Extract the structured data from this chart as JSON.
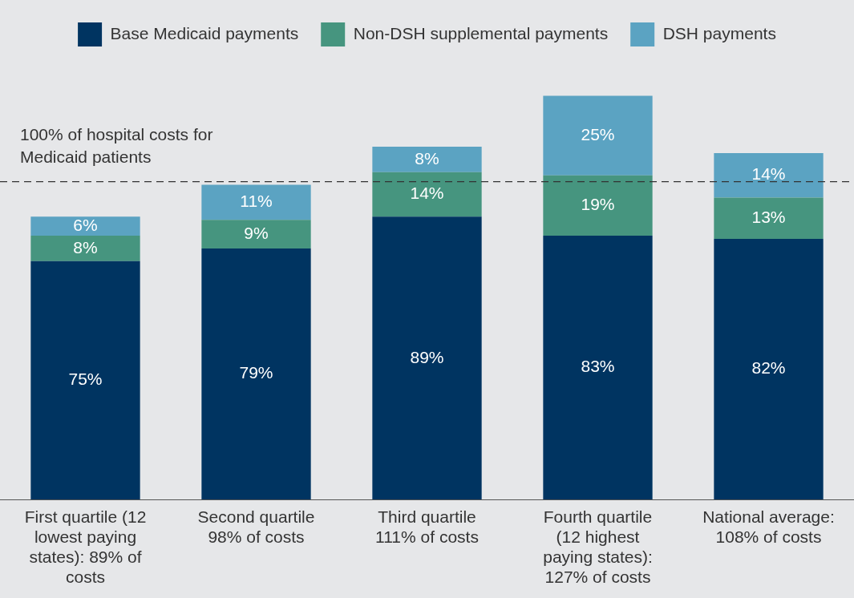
{
  "chart_data": {
    "type": "bar",
    "stacked": true,
    "categories": [
      "First quartile (12 lowest paying states): 89% of costs",
      "Second quartile 98% of costs",
      "Third quartile 111% of costs",
      "Fourth quartile (12 highest paying states): 127% of costs",
      "National average: 108% of costs"
    ],
    "series": [
      {
        "name": "Base Medicaid payments",
        "color": "#003461",
        "values": [
          75,
          79,
          89,
          83,
          82
        ],
        "value_labels": [
          "75%",
          "79%",
          "89%",
          "83%",
          "82%"
        ]
      },
      {
        "name": "Non-DSH supplemental payments",
        "color": "#46957f",
        "values": [
          8,
          9,
          14,
          19,
          13
        ],
        "value_labels": [
          "8%",
          "9%",
          "14%",
          "19%",
          "13%"
        ]
      },
      {
        "name": "DSH payments",
        "color": "#5ba3c2",
        "values": [
          6,
          11,
          8,
          25,
          14
        ],
        "value_labels": [
          "6%",
          "11%",
          "8%",
          "25%",
          "14%"
        ]
      }
    ],
    "tick_labels": "x",
    "grid": false,
    "legend": "top",
    "ref_lines": [
      {
        "axis": "y",
        "value": 100,
        "label": "100% of hospital costs for Medicaid patients",
        "line_style": "dashed",
        "color": "#333333"
      }
    ]
  }
}
